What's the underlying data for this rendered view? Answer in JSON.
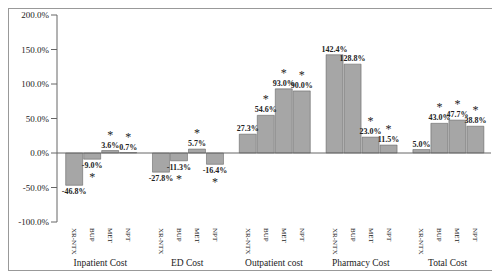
{
  "chart_data": {
    "type": "bar",
    "categories": [
      "Inpatient Cost",
      "ED Cost",
      "Outpatient cost",
      "Pharmacy Cost",
      "Total Cost"
    ],
    "series": [
      {
        "name": "XR-NTX",
        "color": "#a6a6a6",
        "values": [
          -46.8,
          -27.8,
          27.3,
          142.4,
          5.0
        ],
        "value_labels": [
          "-46.8%",
          "-27.8%",
          "27.3%",
          "142.4%",
          "5.0%"
        ],
        "significance": [
          null,
          null,
          null,
          null,
          null
        ]
      },
      {
        "name": "BUP",
        "color": "#a6a6a6",
        "values": [
          -9.0,
          -11.3,
          54.6,
          128.8,
          43.0
        ],
        "value_labels": [
          "-9.0%",
          "-11.3%",
          "54.6%",
          "128.8%",
          "43.0%"
        ],
        "significance": [
          "*",
          "*",
          "*",
          null,
          "*"
        ]
      },
      {
        "name": "MET",
        "color": "#a6a6a6",
        "values": [
          3.6,
          5.7,
          93.0,
          23.0,
          47.7
        ],
        "value_labels": [
          "3.6%",
          "5.7%",
          "93.0%",
          "23.0%",
          "47.7%"
        ],
        "significance": [
          "*",
          "*",
          "*",
          "*",
          "*"
        ]
      },
      {
        "name": "NPT",
        "color": "#a6a6a6",
        "values": [
          0.7,
          -16.4,
          90.0,
          11.5,
          38.8
        ],
        "value_labels": [
          "0.7%",
          "-16.4%",
          "90.0%",
          "11.5%",
          "38.8%"
        ],
        "significance": [
          "*",
          "*",
          "*",
          "*",
          "*"
        ]
      }
    ],
    "ylim": [
      -100,
      200
    ],
    "yticks": [
      {
        "value": -100,
        "label": "-100.0%"
      },
      {
        "value": -50,
        "label": "-50.0%"
      },
      {
        "value": 0,
        "label": "0.0%"
      },
      {
        "value": 50,
        "label": "50.0%"
      },
      {
        "value": 100,
        "label": "100.0%"
      },
      {
        "value": 150,
        "label": "150.0%"
      },
      {
        "value": 200,
        "label": "200.0%"
      }
    ],
    "data_labels": true,
    "grid": false
  }
}
